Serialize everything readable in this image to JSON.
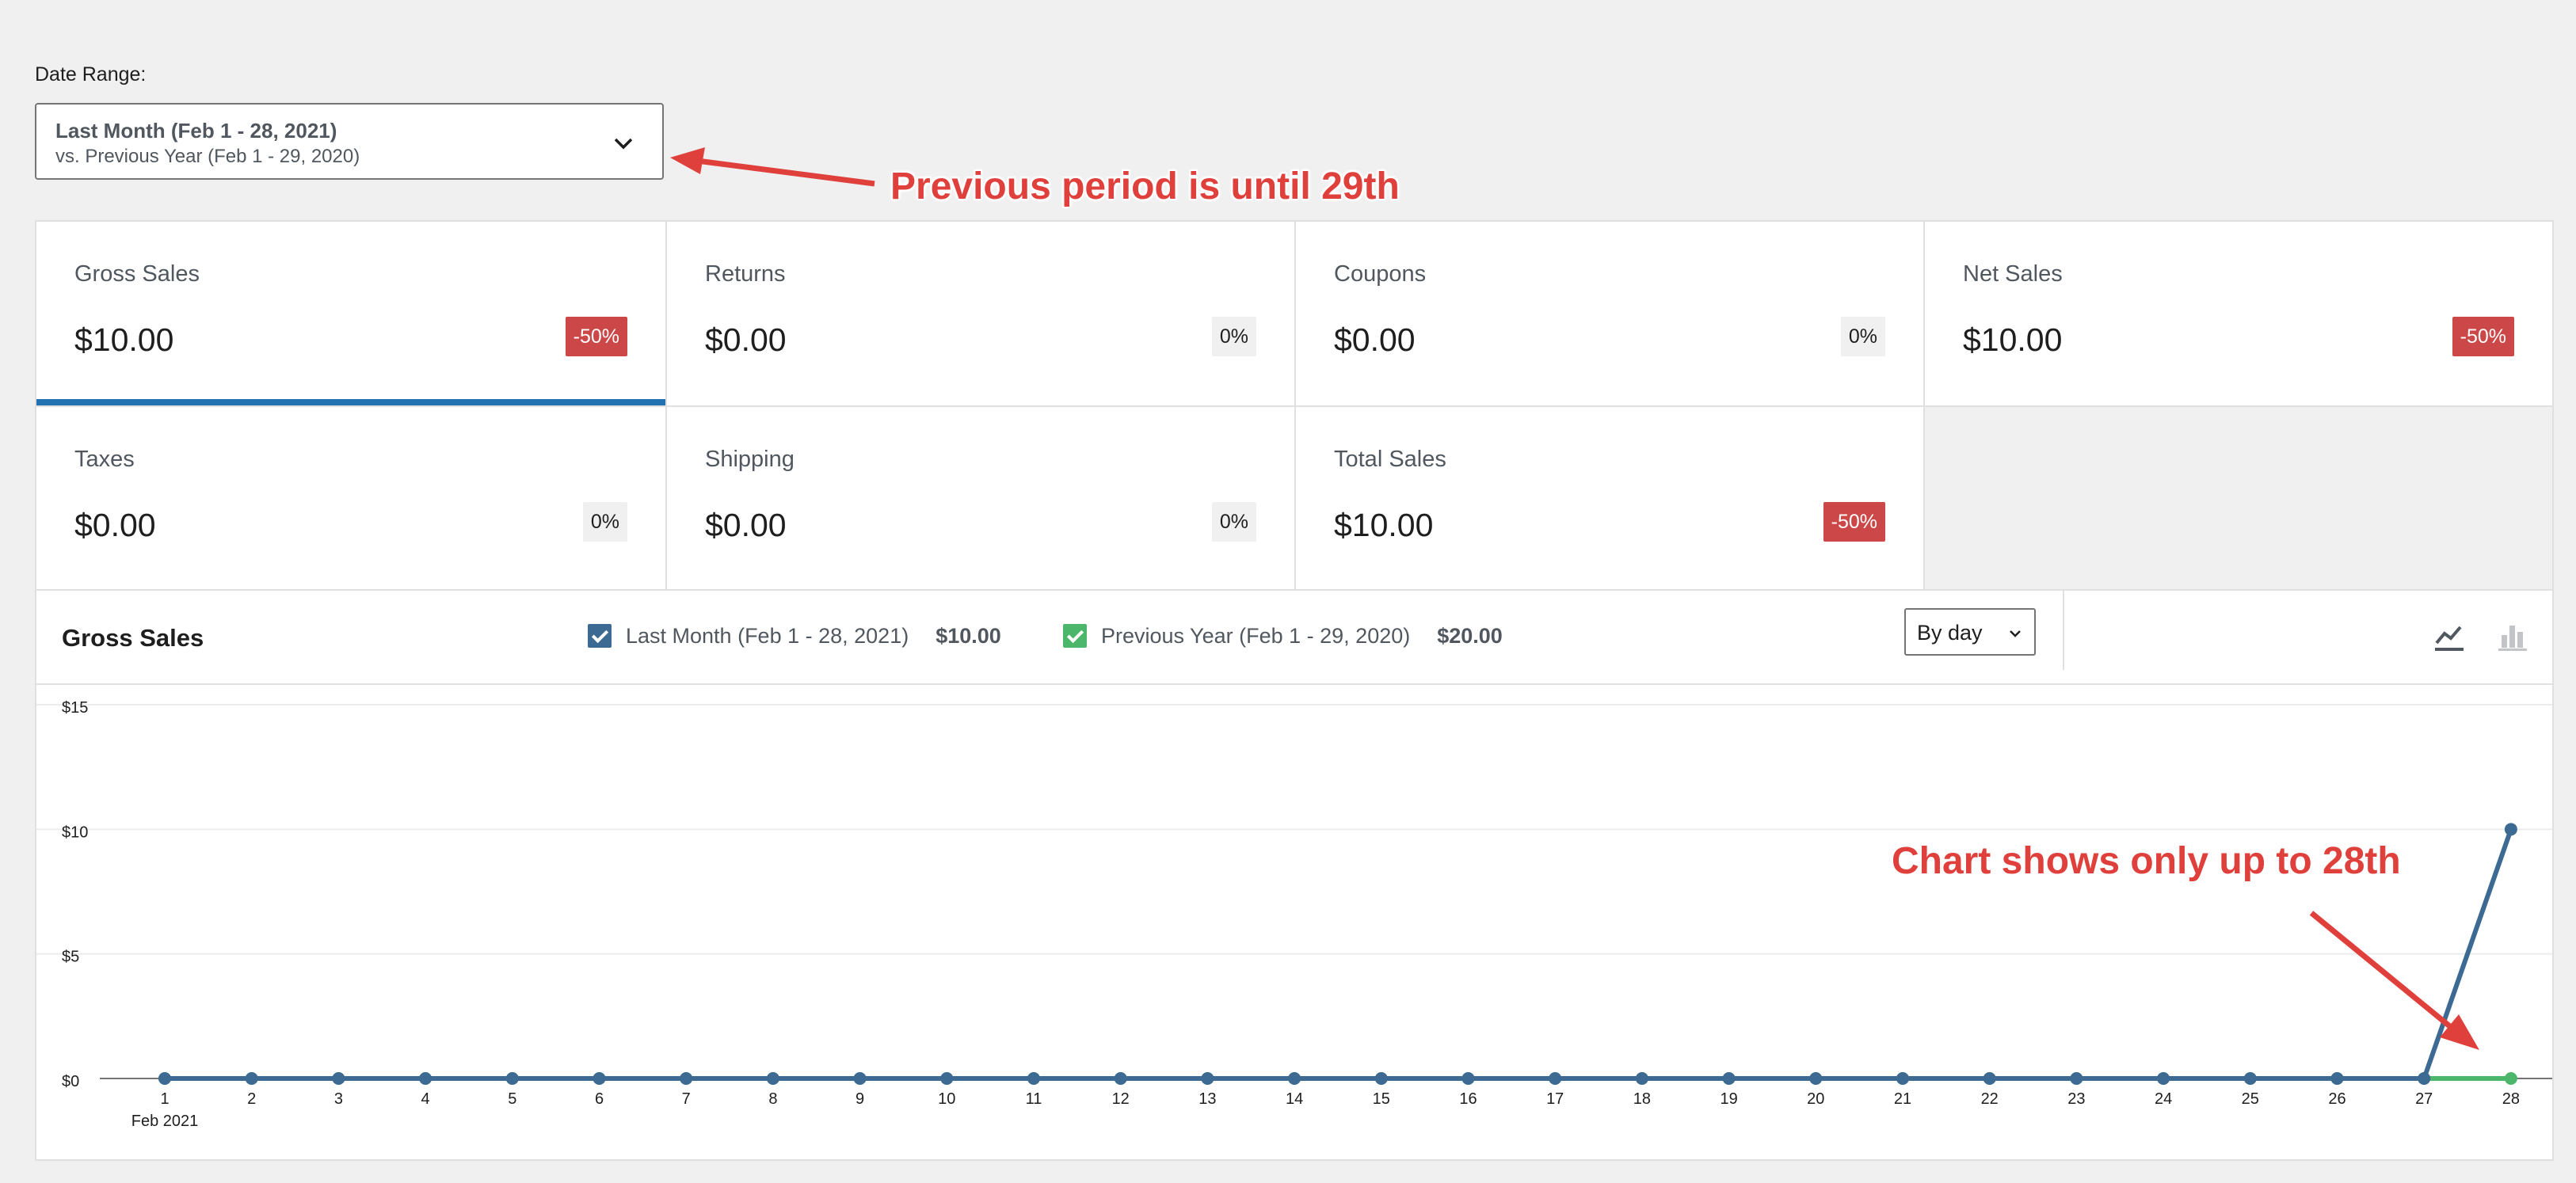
{
  "date_range": {
    "label": "Date Range:",
    "primary": "Last Month (Feb 1 - 28, 2021)",
    "secondary": "vs. Previous Year (Feb 1 - 29, 2020)",
    "icon": "chevron-down-icon"
  },
  "annotations": {
    "top": "Previous period is until 29th",
    "chart": "Chart shows only up to 28th",
    "color": "#e0403c"
  },
  "stats": [
    {
      "label": "Gross Sales",
      "value": "$10.00",
      "delta": "-50%",
      "selected": true
    },
    {
      "label": "Returns",
      "value": "$0.00",
      "delta": "0%"
    },
    {
      "label": "Coupons",
      "value": "$0.00",
      "delta": "0%"
    },
    {
      "label": "Net Sales",
      "value": "$10.00",
      "delta": "-50%"
    },
    {
      "label": "Taxes",
      "value": "$0.00",
      "delta": "0%"
    },
    {
      "label": "Shipping",
      "value": "$0.00",
      "delta": "0%"
    },
    {
      "label": "Total Sales",
      "value": "$10.00",
      "delta": "-50%"
    }
  ],
  "chart_header": {
    "title": "Gross Sales",
    "legend": [
      {
        "label": "Last Month (Feb 1 - 28, 2021)",
        "total": "$10.00",
        "color": "#3d6a93",
        "checked": true
      },
      {
        "label": "Previous Year (Feb 1 - 29, 2020)",
        "total": "$20.00",
        "color": "#4cb66a",
        "checked": true
      }
    ],
    "interval": "By day",
    "chart_types": [
      "line-chart-icon",
      "bar-chart-icon"
    ]
  },
  "chart_data": {
    "type": "line",
    "x": [
      1,
      2,
      3,
      4,
      5,
      6,
      7,
      8,
      9,
      10,
      11,
      12,
      13,
      14,
      15,
      16,
      17,
      18,
      19,
      20,
      21,
      22,
      23,
      24,
      25,
      26,
      27,
      28
    ],
    "x_month_label": "Feb 2021",
    "y_ticks": [
      "$15",
      "$10",
      "$5",
      "$0"
    ],
    "ylim": [
      0,
      15
    ],
    "grid": true,
    "series": [
      {
        "name": "Last Month (Feb 1 - 28, 2021)",
        "color": "#3d6a93",
        "values": [
          0,
          0,
          0,
          0,
          0,
          0,
          0,
          0,
          0,
          0,
          0,
          0,
          0,
          0,
          0,
          0,
          0,
          0,
          0,
          0,
          0,
          0,
          0,
          0,
          0,
          0,
          0,
          10
        ]
      },
      {
        "name": "Previous Year (Feb 1 - 29, 2020)",
        "color": "#4cb66a",
        "values": [
          0,
          0,
          0,
          0,
          0,
          0,
          0,
          0,
          0,
          0,
          0,
          0,
          0,
          0,
          0,
          0,
          0,
          0,
          0,
          0,
          0,
          0,
          0,
          0,
          0,
          0,
          0,
          0
        ]
      }
    ]
  }
}
